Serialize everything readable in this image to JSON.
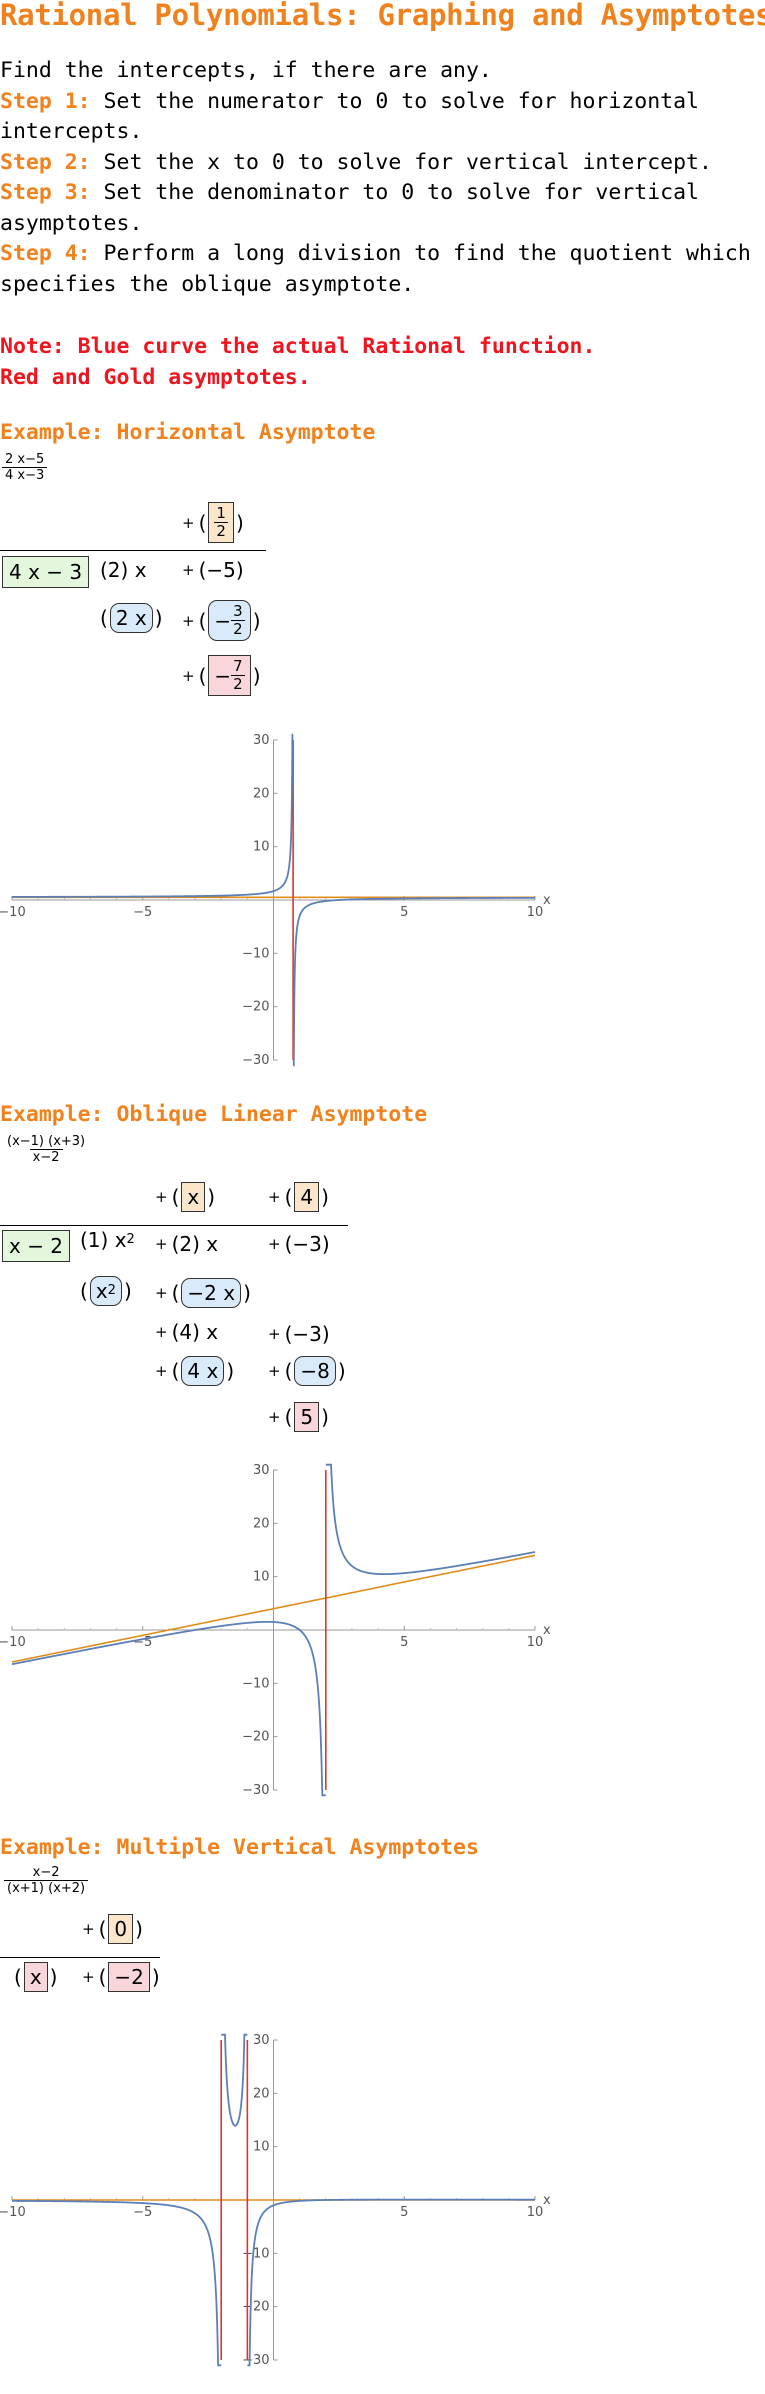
{
  "title": "Rational Polynomials: Graphing and Asymptotes",
  "intro": "Find the intercepts, if there are any.",
  "steps": [
    {
      "label": "Step 1:",
      "text": " Set the numerator to 0 to solve for horizontal intercepts."
    },
    {
      "label": "Step 2:",
      "text": " Set the x to 0 to solve for vertical intercept."
    },
    {
      "label": "Step 3:",
      "text": " Set the denominator to 0 to solve for vertical asymptotes."
    },
    {
      "label": "Step 4:",
      "text": " Perform a long division to find the quotient which specifies the oblique asymptote."
    }
  ],
  "note": {
    "line1": "Note: Blue curve the actual Rational function.",
    "line2": "Red and Gold asymptotes."
  },
  "colors": {
    "heading": "#f0821e",
    "note": "#f0141e",
    "curve": "#5b7fb8",
    "vertical_asymptote": "#e0352b",
    "other_asymptote": "#e08c1a"
  },
  "examples": [
    {
      "title": "Example: Horizontal Asymptote",
      "function": {
        "num": "2 x−5",
        "den": "4 x−3"
      },
      "division": {
        "quotient": [
          "1",
          "2"
        ],
        "divisor": "4 x − 3",
        "dividend": [
          "(2) x",
          "(−5)"
        ],
        "sub1": [
          "2 x",
          "3",
          "2"
        ],
        "remainder": [
          "7",
          "2"
        ]
      }
    },
    {
      "title": "Example: Oblique Linear Asymptote",
      "function": {
        "num": "(x−1) (x+3)",
        "den": "x−2"
      },
      "division": {
        "quotient": [
          "x",
          "4"
        ],
        "divisor": "x − 2",
        "dividend": [
          "(1) x",
          "2",
          "(2) x",
          "(−3)"
        ],
        "sub1": [
          "x",
          "2",
          "−2 x"
        ],
        "row3": [
          "(4) x",
          "(−3)"
        ],
        "sub2": [
          "4 x",
          "−8"
        ],
        "remainder": "5"
      }
    },
    {
      "title": "Example: Multiple Vertical Asymptotes",
      "function": {
        "num": "x−2",
        "den": "(x+1) (x+2)"
      },
      "division": {
        "quotient": "0",
        "divisor_x": "x",
        "divisor_c": "−2"
      }
    }
  ],
  "axis": {
    "x_label": "x",
    "x_ticks": [
      "−10",
      "−5",
      "5",
      "10"
    ],
    "y_ticks": [
      "30",
      "20",
      "10",
      "−10",
      "−20",
      "−30"
    ]
  },
  "chart_data": [
    {
      "type": "line",
      "function": "(2x−5)/(4x−3)",
      "x_range": [
        -10,
        10
      ],
      "y_range": [
        -30,
        30
      ],
      "series": [],
      "vertical_asymptotes": [
        0.75
      ],
      "horizontal_asymptote": 0.5
    },
    {
      "type": "line",
      "function": "(x−1)(x+3)/(x−2)",
      "x_range": [
        -10,
        10
      ],
      "y_range": [
        -30,
        30
      ],
      "series": [],
      "vertical_asymptotes": [
        2
      ],
      "oblique_asymptote": {
        "slope": 1,
        "intercept": 4
      }
    },
    {
      "type": "line",
      "function": "(x−2)/((x+1)(x+2))",
      "x_range": [
        -10,
        10
      ],
      "y_range": [
        -30,
        30
      ],
      "series": [],
      "vertical_asymptotes": [
        -2,
        -1
      ],
      "horizontal_asymptote": 0
    }
  ]
}
